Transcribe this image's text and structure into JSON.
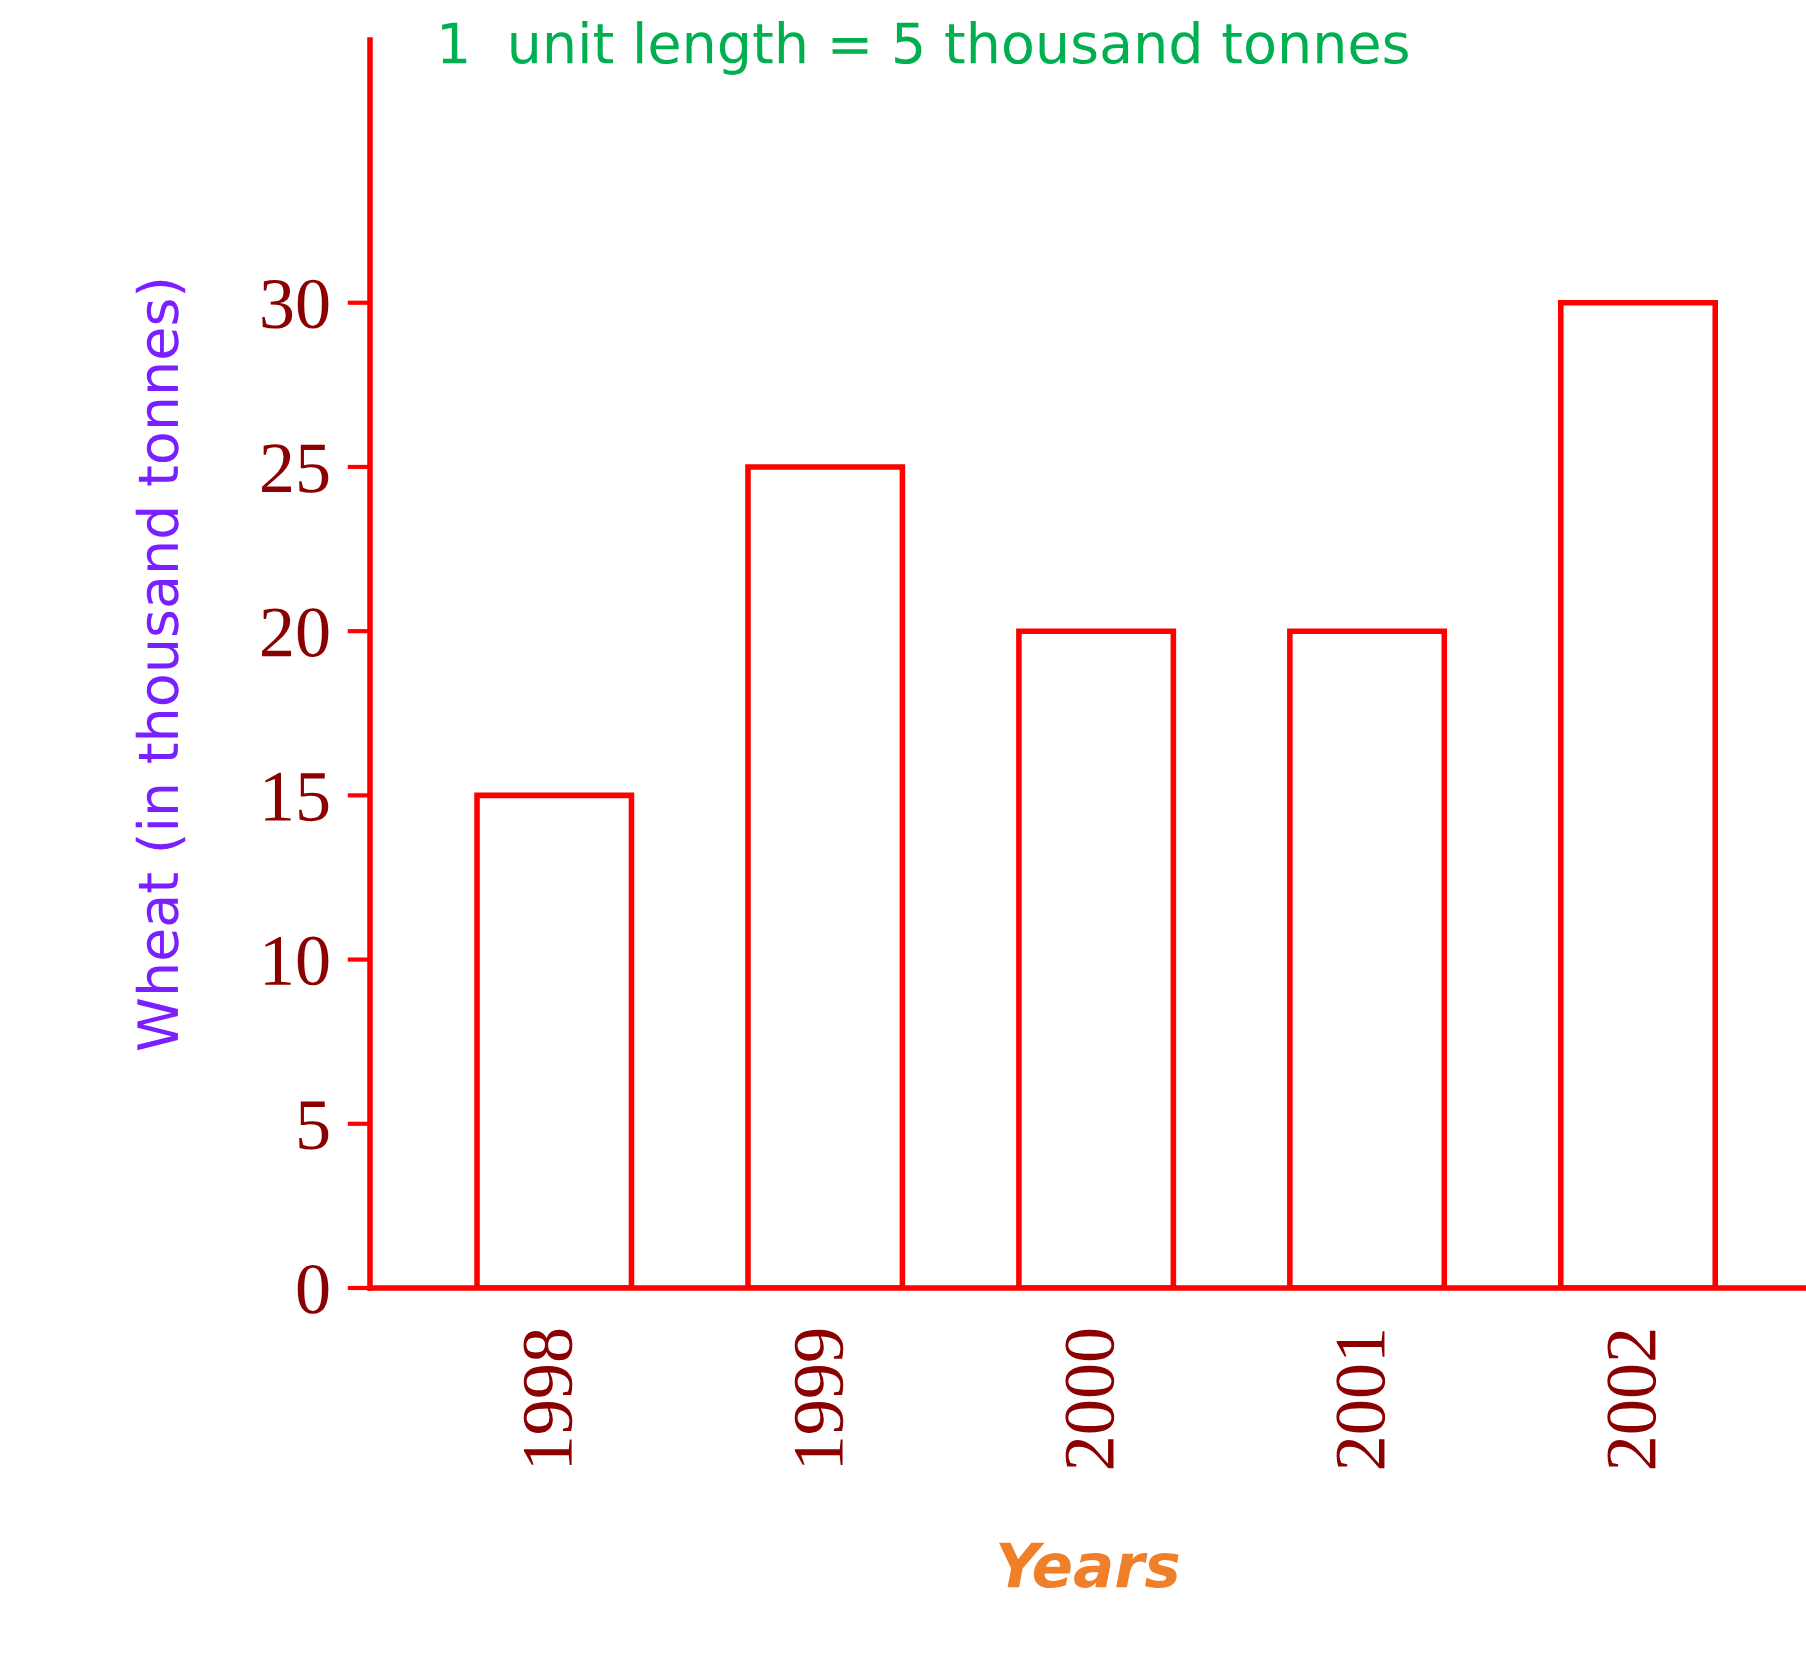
{
  "chart_data": {
    "type": "bar",
    "annotations": [
      "1  unit length = 5 thousand tonnes"
    ],
    "xlabel": "Years",
    "ylabel": "Wheat (in thousand tonnes)",
    "categories": [
      "1998",
      "1999",
      "2000",
      "2001",
      "2002"
    ],
    "values": [
      15,
      25,
      20,
      20,
      30
    ],
    "color": "#ff0000",
    "ylim": [
      0,
      38
    ],
    "yticks": [
      0,
      5,
      10,
      15,
      20,
      25,
      30
    ],
    "grid": false,
    "legend": false
  }
}
